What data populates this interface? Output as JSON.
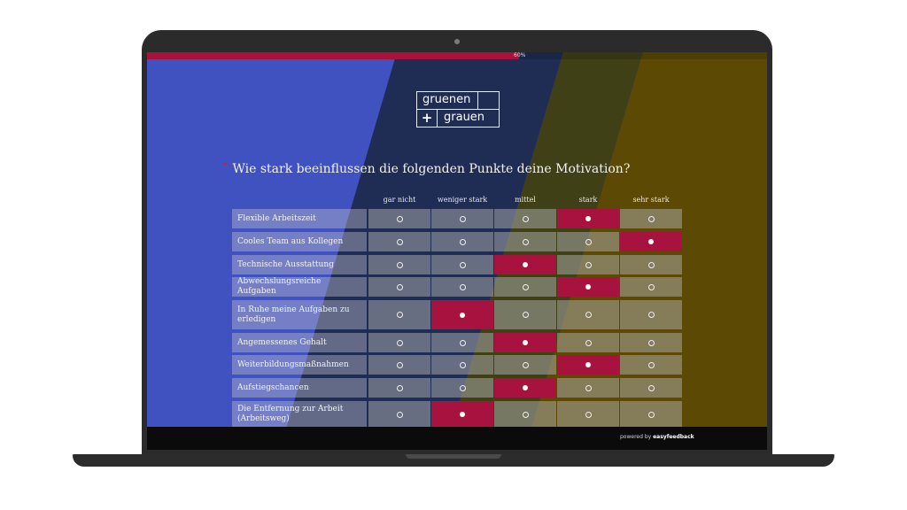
{
  "progress": {
    "percent_label": "60%",
    "fraction": 0.6
  },
  "logo": {
    "line1": "gruenen",
    "plus": "+",
    "line2": "grauen"
  },
  "question": {
    "required_marker": "*",
    "text": "Wie stark beeinflussen die folgenden Punkte deine Motivation?"
  },
  "columns": [
    "gar nicht",
    "weniger stark",
    "mittel",
    "stark",
    "sehr stark"
  ],
  "rows": [
    {
      "label": "Flexible Arbeitszeit",
      "selected": 3
    },
    {
      "label": "Cooles Team aus Kollegen",
      "selected": 4
    },
    {
      "label": "Technische Ausstattung",
      "selected": 2
    },
    {
      "label": "Abwechslungsreiche Aufgaben",
      "selected": 3
    },
    {
      "label": "In Ruhe meine Aufgaben zu erledigen",
      "selected": 1
    },
    {
      "label": "Angemessenes Gehalt",
      "selected": 2
    },
    {
      "label": "Weiterbildungsmaßnahmen",
      "selected": 3
    },
    {
      "label": "Aufstiegschancen",
      "selected": 2
    },
    {
      "label": "Die Entfernung zur Arbeit (Arbeitsweg)",
      "selected": 1
    }
  ],
  "footer": {
    "prefix": "powered by",
    "brand": "easyfeedback"
  },
  "colors": {
    "accent": "#a8123e",
    "blue": "#4052c0",
    "navy": "#1f2d55",
    "olive": "#3f4016",
    "gold": "#5b4904"
  }
}
